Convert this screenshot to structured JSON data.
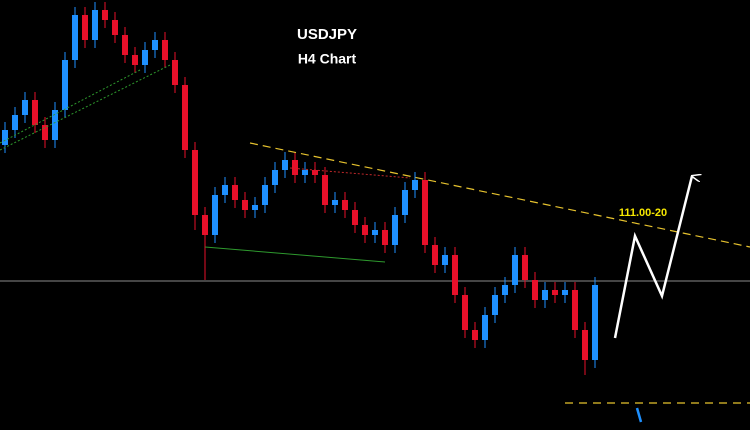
{
  "chart_data": {
    "type": "candlestick",
    "title": "USDJPY",
    "subtitle": "H4 Chart",
    "annotation": "111.00-20",
    "bull_color": "#1e90ff",
    "bear_color": "#e8102a",
    "xlim": [
      -0.5,
      74.5
    ],
    "ylim": [
      108.85,
      113.15
    ],
    "open": [
      111.7,
      111.85,
      112.0,
      112.15,
      111.9,
      111.75,
      112.05,
      112.55,
      113.0,
      112.75,
      113.05,
      112.95,
      112.8,
      112.6,
      112.5,
      112.65,
      112.75,
      112.55,
      112.3,
      111.65,
      111.0,
      110.8,
      111.2,
      111.3,
      111.15,
      111.05,
      111.1,
      111.3,
      111.45,
      111.55,
      111.4,
      111.45,
      111.4,
      111.1,
      111.15,
      111.05,
      110.9,
      110.8,
      110.85,
      110.7,
      111.0,
      111.25,
      111.35,
      110.7,
      110.5,
      110.6,
      110.2,
      109.85,
      109.75,
      110.0,
      110.2,
      110.3,
      110.6,
      110.35,
      110.15,
      110.25,
      110.2,
      110.25,
      109.85,
      109.55
    ],
    "high": [
      111.93,
      112.08,
      112.23,
      112.23,
      111.98,
      112.13,
      112.63,
      113.08,
      113.08,
      113.13,
      113.13,
      113.03,
      112.88,
      112.68,
      112.73,
      112.83,
      112.83,
      112.63,
      112.38,
      111.73,
      111.08,
      111.28,
      111.38,
      111.38,
      111.23,
      111.18,
      111.38,
      111.53,
      111.63,
      111.63,
      111.53,
      111.53,
      111.48,
      111.23,
      111.23,
      111.13,
      110.98,
      110.93,
      110.93,
      111.08,
      111.33,
      111.43,
      111.43,
      110.78,
      110.68,
      110.68,
      110.28,
      109.93,
      110.08,
      110.28,
      110.38,
      110.68,
      110.68,
      110.43,
      110.33,
      110.33,
      110.33,
      110.33,
      109.93,
      110.38
    ],
    "low": [
      111.62,
      111.77,
      111.92,
      111.82,
      111.67,
      111.67,
      111.97,
      112.47,
      112.67,
      112.67,
      112.87,
      112.72,
      112.52,
      112.42,
      112.42,
      112.57,
      112.47,
      112.22,
      111.57,
      110.85,
      110.35,
      110.72,
      111.12,
      111.07,
      110.97,
      110.97,
      111.02,
      111.22,
      111.37,
      111.32,
      111.32,
      111.32,
      111.02,
      111.02,
      110.97,
      110.82,
      110.72,
      110.72,
      110.62,
      110.62,
      110.92,
      111.17,
      110.62,
      110.42,
      110.42,
      110.12,
      109.77,
      109.67,
      109.67,
      109.92,
      110.12,
      110.22,
      110.27,
      110.07,
      110.07,
      110.12,
      110.12,
      109.77,
      109.4,
      109.47
    ],
    "close": [
      111.85,
      112.0,
      112.15,
      111.9,
      111.75,
      112.05,
      112.55,
      113.0,
      112.75,
      113.05,
      112.95,
      112.8,
      112.6,
      112.5,
      112.65,
      112.75,
      112.55,
      112.3,
      111.65,
      111.0,
      110.8,
      111.2,
      111.3,
      111.15,
      111.05,
      111.1,
      111.3,
      111.45,
      111.55,
      111.4,
      111.45,
      111.4,
      111.1,
      111.15,
      111.05,
      110.9,
      110.8,
      110.85,
      110.7,
      111.0,
      111.25,
      111.35,
      110.7,
      110.5,
      110.6,
      110.2,
      109.85,
      109.75,
      110.0,
      110.2,
      110.3,
      110.6,
      110.35,
      110.15,
      110.25,
      110.2,
      110.25,
      109.85,
      109.55,
      110.3
    ],
    "horizontal_line": {
      "y": 110.34,
      "color": "#8a8a8a"
    },
    "dashed_level": {
      "x": [
        56,
        74.5
      ],
      "y": 109.12,
      "color": "#e6c22e"
    },
    "lines": [
      {
        "x": [
          24.5,
          74.5
        ],
        "y": [
          111.72,
          110.68
        ],
        "color": "#e6c22e",
        "dash": "8 5",
        "width": 1.2
      },
      {
        "x": [
          -0.5,
          16.5
        ],
        "y": [
          111.65,
          112.5
        ],
        "color": "#2e9a2e",
        "dash": "2 2",
        "width": 1
      },
      {
        "x": [
          -0.5,
          13.5
        ],
        "y": [
          111.72,
          112.45
        ],
        "color": "#2e9a2e",
        "dash": "2 2",
        "width": 1
      },
      {
        "x": [
          20,
          38
        ],
        "y": [
          110.68,
          110.53
        ],
        "color": "#2e9a2e",
        "dash": "",
        "width": 1
      },
      {
        "x": [
          28.5,
          40.5
        ],
        "y": [
          111.47,
          111.37
        ],
        "color": "#c0282a",
        "dash": "2 2",
        "width": 1
      }
    ],
    "forecast": {
      "x": [
        61,
        63,
        65.7,
        68.7
      ],
      "y": [
        109.77,
        110.79,
        110.19,
        111.39
      ],
      "color": "#ffffff"
    },
    "small_arrow": {
      "x": [
        63.2,
        63.6
      ],
      "y": [
        109.07,
        108.93
      ],
      "color": "#1e90ff"
    }
  }
}
